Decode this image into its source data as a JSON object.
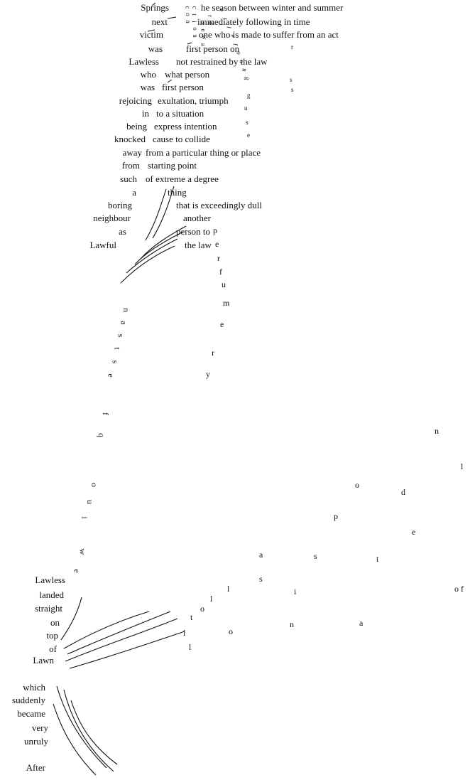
{
  "left_words": [
    "Springs",
    "next",
    "victim",
    "was",
    "Lawless",
    "who",
    "was",
    "rejoicing",
    "in",
    "being",
    "knocked",
    "away",
    "from",
    "such",
    "a",
    "boring",
    "neighbour",
    "as",
    "Lawful"
  ],
  "right_phrases": [
    "he season between winter and summer",
    "immediately following in time",
    "one who is made to suffer from an act",
    "first person on",
    "not restrained by the law",
    "what person",
    "first person",
    "exultation, triumph",
    "to a situation",
    "express intention",
    "cause to collide",
    "from a particular thing or place",
    "starting point",
    "of extreme a degree",
    "thing",
    "that is exceedingly dull",
    "another",
    "person to",
    "the law"
  ],
  "bottom_words": [
    "Lawless",
    "landed",
    "straight",
    "on",
    "top",
    "of",
    "Lawn",
    "which",
    "suddenly",
    "became",
    "very",
    "unruly",
    "After"
  ],
  "trail_text": "perfumer",
  "arc_text": "of a plot of grass"
}
